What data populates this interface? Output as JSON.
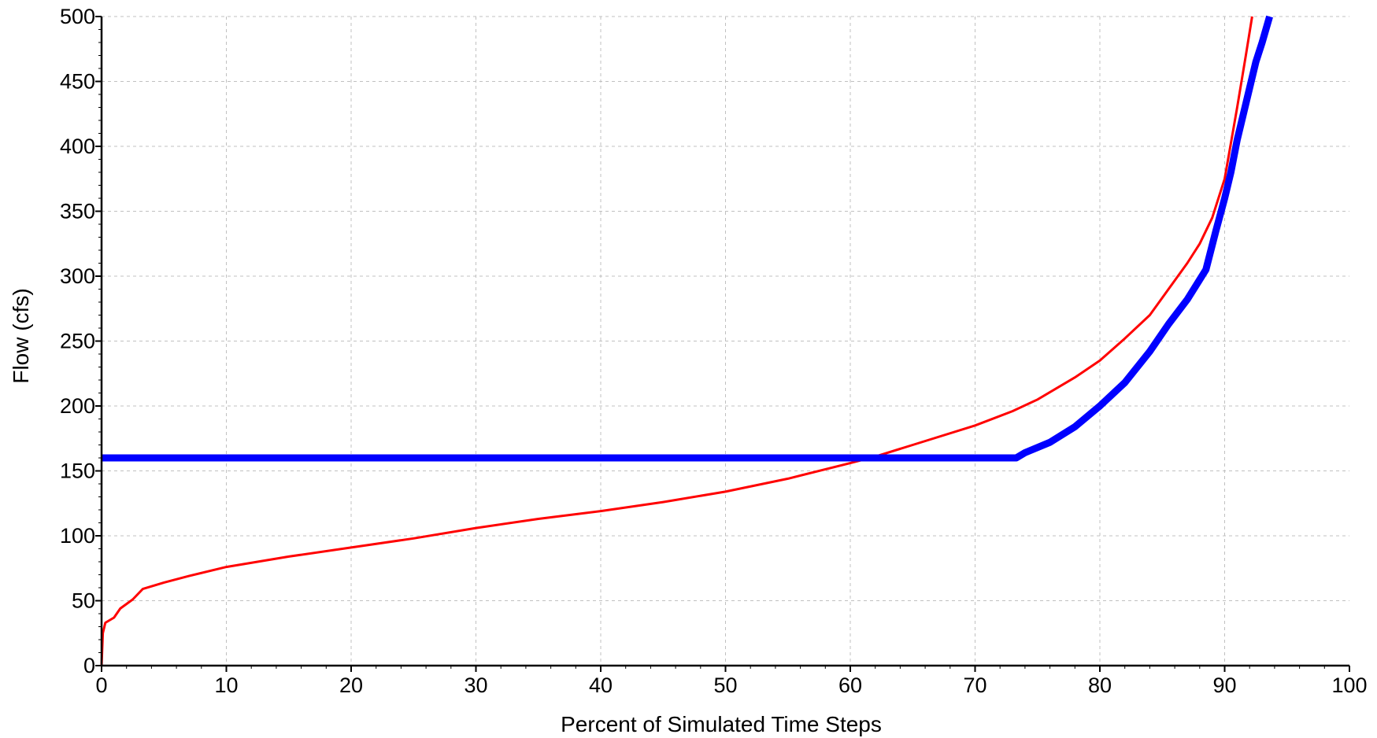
{
  "chart_data": {
    "type": "line",
    "title": "",
    "xlabel": "Percent of Simulated Time Steps",
    "ylabel": "Flow (cfs)",
    "xlim": [
      0,
      100
    ],
    "ylim": [
      0,
      500
    ],
    "x_ticks": [
      0,
      10,
      20,
      30,
      40,
      50,
      60,
      70,
      80,
      90,
      100
    ],
    "y_ticks": [
      0,
      50,
      100,
      150,
      200,
      250,
      300,
      350,
      400,
      450,
      500
    ],
    "x_tick_labels": [
      "0",
      "10",
      "20",
      "30",
      "40",
      "50",
      "60",
      "70",
      "80",
      "90",
      "100"
    ],
    "y_tick_labels": [
      "0",
      "50",
      "100",
      "150",
      "200",
      "250",
      "300",
      "350",
      "400",
      "450",
      "500"
    ],
    "grid": true,
    "legend": "none",
    "series": [
      {
        "color": "#ff0000",
        "line_style": "thin",
        "points": [
          [
            0,
            0
          ],
          [
            0.1,
            25
          ],
          [
            0.3,
            33
          ],
          [
            1,
            37
          ],
          [
            1.5,
            44
          ],
          [
            2.5,
            51
          ],
          [
            3.3,
            59
          ],
          [
            5,
            64
          ],
          [
            7,
            69
          ],
          [
            10,
            76
          ],
          [
            15,
            84
          ],
          [
            20,
            91
          ],
          [
            25,
            98
          ],
          [
            30,
            106
          ],
          [
            35,
            113
          ],
          [
            40,
            119
          ],
          [
            45,
            126
          ],
          [
            50,
            134
          ],
          [
            55,
            144
          ],
          [
            60,
            156
          ],
          [
            62,
            161
          ],
          [
            65,
            170
          ],
          [
            70,
            185
          ],
          [
            73,
            196
          ],
          [
            75,
            205
          ],
          [
            78,
            222
          ],
          [
            80,
            235
          ],
          [
            82,
            252
          ],
          [
            84,
            270
          ],
          [
            85.5,
            290
          ],
          [
            87,
            310
          ],
          [
            88,
            325
          ],
          [
            89,
            345
          ],
          [
            90,
            375
          ],
          [
            91,
            430
          ],
          [
            91.7,
            470
          ],
          [
            92.2,
            500
          ]
        ]
      },
      {
        "color": "#0000ff",
        "line_style": "thick",
        "points": [
          [
            0,
            160
          ],
          [
            73.3,
            160
          ],
          [
            74,
            164
          ],
          [
            76,
            172
          ],
          [
            78,
            184
          ],
          [
            80,
            200
          ],
          [
            82,
            218
          ],
          [
            84,
            242
          ],
          [
            85.5,
            263
          ],
          [
            87,
            282
          ],
          [
            88.5,
            305
          ],
          [
            89.3,
            335
          ],
          [
            90,
            360
          ],
          [
            90.5,
            380
          ],
          [
            91,
            405
          ],
          [
            91.5,
            425
          ],
          [
            92,
            445
          ],
          [
            92.5,
            465
          ],
          [
            93,
            480
          ],
          [
            93.6,
            500
          ]
        ]
      }
    ]
  }
}
